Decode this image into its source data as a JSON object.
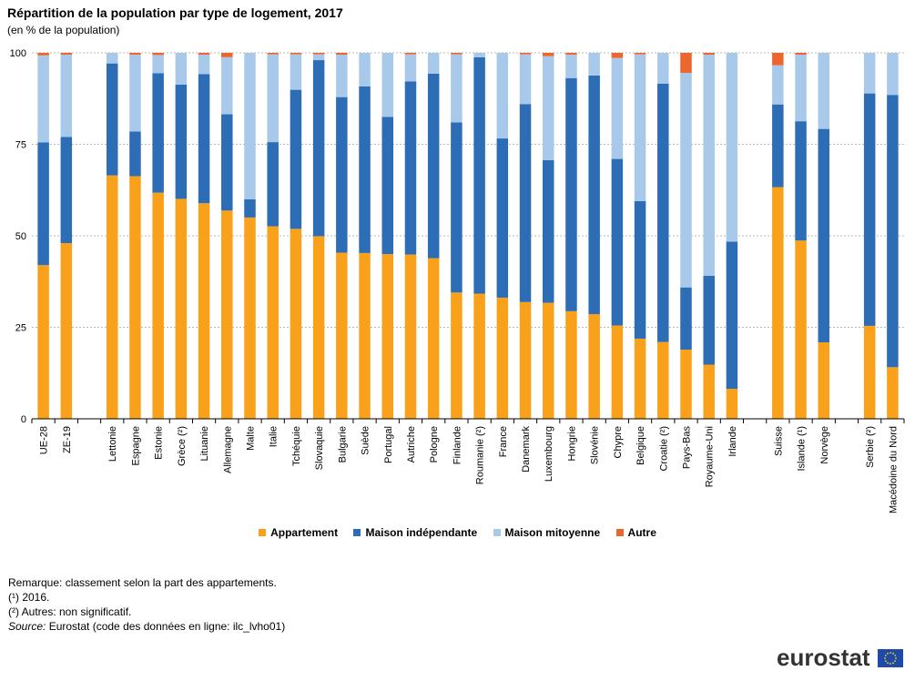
{
  "title": "Répartition de la population par type de logement, 2017",
  "subtitle": "(en % de la population)",
  "legend": {
    "items": [
      {
        "label": "Appartement",
        "color": "#f9a11b"
      },
      {
        "label": "Maison indépendante",
        "color": "#2c6db5"
      },
      {
        "label": "Maison mitoyenne",
        "color": "#a8c9ea"
      },
      {
        "label": "Autre",
        "color": "#ec6630"
      }
    ]
  },
  "notes": {
    "remark": "Remarque: classement selon la part des appartements.",
    "note1": "(¹) 2016.",
    "note2": "(²) Autres: non significatif.",
    "source_label": "Source:",
    "source_text": " Eurostat (code des données en ligne: ilc_lvho01)"
  },
  "brand": "eurostat",
  "chart_data": {
    "type": "bar",
    "stacked": true,
    "title": "Répartition de la population par type de logement, 2017",
    "ylabel": "en % de la population",
    "ylim": [
      0,
      100
    ],
    "yticks": [
      0,
      25,
      50,
      75,
      100
    ],
    "grid": true,
    "legend_position": "bottom",
    "categories": [
      "UE-28",
      "ZE-19",
      "",
      "Lettonie",
      "Espagne",
      "Estonie",
      "Grèce (²)",
      "Lituanie",
      "Allemagne",
      "Malte",
      "Italie",
      "Tchéquie",
      "Slovaquie",
      "Bulgarie",
      "Suède",
      "Portugal",
      "Autriche",
      "Pologne",
      "Finlande",
      "Roumanie (²)",
      "France",
      "Danemark",
      "Luxembourg",
      "Hongrie",
      "Slovénie",
      "Chypre",
      "Belgique",
      "Croatie (²)",
      "Pays-Bas",
      "Royaume-Uni",
      "Irlande",
      "",
      "Suisse",
      "Islande (¹)",
      "Norvège",
      "",
      "Serbie (²)",
      "Macédoine du Nord"
    ],
    "series": [
      {
        "name": "Appartement",
        "color": "#f9a11b",
        "values": [
          42,
          48,
          null,
          66.5,
          66.3,
          61.8,
          60.1,
          58.9,
          56.9,
          55,
          52.6,
          51.9,
          49.9,
          45.4,
          45.3,
          45,
          44.9,
          43.9,
          34.5,
          34.2,
          33.1,
          31.9,
          31.7,
          29.4,
          28.6,
          25.5,
          21.9,
          21,
          18.9,
          14.8,
          8.2,
          null,
          63.3,
          48.7,
          20.9,
          null,
          25.4,
          14.1
        ]
      },
      {
        "name": "Maison indépendante",
        "color": "#2c6db5",
        "values": [
          33.5,
          29,
          null,
          30.6,
          12.2,
          32.6,
          31.2,
          35.3,
          26.3,
          5,
          23,
          38,
          48.1,
          42.5,
          45.5,
          37.5,
          47.3,
          50.4,
          46.5,
          64.6,
          43.5,
          54.1,
          39,
          63.7,
          65.2,
          45.5,
          37.6,
          70.6,
          17,
          24.3,
          40.2,
          null,
          22.6,
          32.6,
          58.3,
          null,
          63.5,
          74.4
        ]
      },
      {
        "name": "Maison mitoyenne",
        "color": "#a8c9ea",
        "values": [
          23.8,
          22.5,
          null,
          2.9,
          21,
          5,
          8.7,
          5.3,
          15.6,
          40,
          24,
          9.7,
          1.6,
          11.6,
          9.2,
          17.5,
          7.4,
          5.7,
          18.6,
          1.2,
          23.4,
          13.6,
          28.4,
          6.4,
          6.2,
          27.6,
          40.1,
          8.4,
          58.6,
          60.4,
          51.6,
          null,
          10.7,
          18.2,
          20.8,
          null,
          11.1,
          11.5
        ]
      },
      {
        "name": "Autre",
        "color": "#ec6630",
        "values": [
          0.7,
          0.5,
          null,
          0,
          0.5,
          0.6,
          0,
          0.5,
          1.2,
          0,
          0.4,
          0.4,
          0.4,
          0.5,
          0,
          0,
          0.4,
          0,
          0.4,
          0,
          0,
          0.4,
          0.9,
          0.5,
          0,
          1.4,
          0.4,
          0,
          5.5,
          0.5,
          0,
          null,
          3.4,
          0.5,
          0,
          null,
          0,
          0
        ]
      }
    ]
  }
}
